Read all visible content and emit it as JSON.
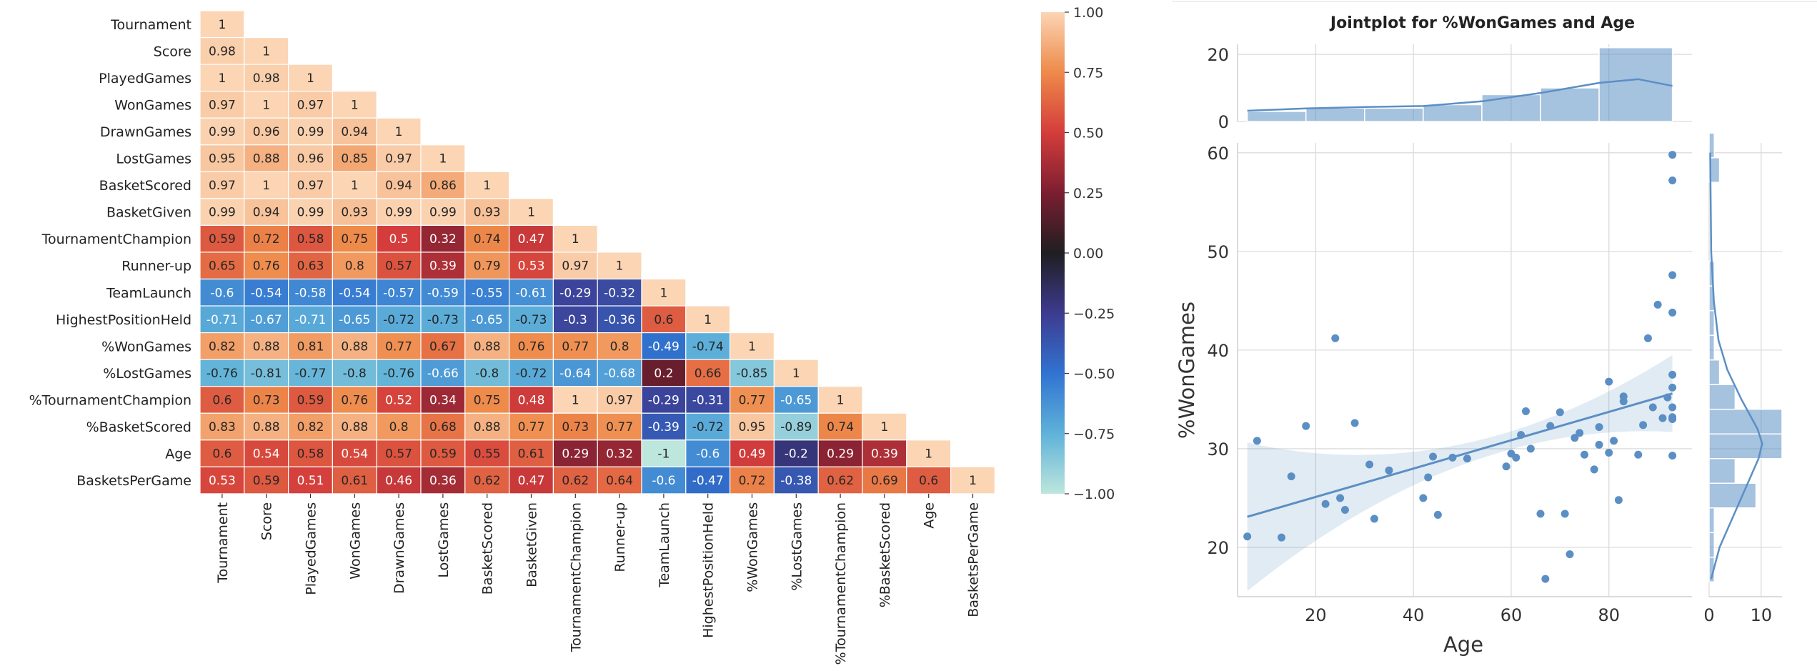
{
  "chart_data": [
    {
      "type": "heatmap",
      "variables": [
        "Tournament",
        "Score",
        "PlayedGames",
        "WonGames",
        "DrawnGames",
        "LostGames",
        "BasketScored",
        "BasketGiven",
        "TournamentChampion",
        "Runner-up",
        "TeamLaunch",
        "HighestPositionHeld",
        "%WonGames",
        "%LostGames",
        "%TournamentChampion",
        "%BasketScored",
        "Age",
        "BasketsPerGame"
      ],
      "lower_triangle": [
        [
          "1"
        ],
        [
          "0.98",
          "1"
        ],
        [
          "1",
          "0.98",
          "1"
        ],
        [
          "0.97",
          "1",
          "0.97",
          "1"
        ],
        [
          "0.99",
          "0.96",
          "0.99",
          "0.94",
          "1"
        ],
        [
          "0.95",
          "0.88",
          "0.96",
          "0.85",
          "0.97",
          "1"
        ],
        [
          "0.97",
          "1",
          "0.97",
          "1",
          "0.94",
          "0.86",
          "1"
        ],
        [
          "0.99",
          "0.94",
          "0.99",
          "0.93",
          "0.99",
          "0.99",
          "0.93",
          "1"
        ],
        [
          "0.59",
          "0.72",
          "0.58",
          "0.75",
          "0.5",
          "0.32",
          "0.74",
          "0.47",
          "1"
        ],
        [
          "0.65",
          "0.76",
          "0.63",
          "0.8",
          "0.57",
          "0.39",
          "0.79",
          "0.53",
          "0.97",
          "1"
        ],
        [
          "-0.6",
          "-0.54",
          "-0.58",
          "-0.54",
          "-0.57",
          "-0.59",
          "-0.55",
          "-0.61",
          "-0.29",
          "-0.32",
          "1"
        ],
        [
          "-0.71",
          "-0.67",
          "-0.71",
          "-0.65",
          "-0.72",
          "-0.73",
          "-0.65",
          "-0.73",
          "-0.3",
          "-0.36",
          "0.6",
          "1"
        ],
        [
          "0.82",
          "0.88",
          "0.81",
          "0.88",
          "0.77",
          "0.67",
          "0.88",
          "0.76",
          "0.77",
          "0.8",
          "-0.49",
          "-0.74",
          "1"
        ],
        [
          "-0.76",
          "-0.81",
          "-0.77",
          "-0.8",
          "-0.76",
          "-0.66",
          "-0.8",
          "-0.72",
          "-0.64",
          "-0.68",
          "0.2",
          "0.66",
          "-0.85",
          "1"
        ],
        [
          "0.6",
          "0.73",
          "0.59",
          "0.76",
          "0.52",
          "0.34",
          "0.75",
          "0.48",
          "1",
          "0.97",
          "-0.29",
          "-0.31",
          "0.77",
          "-0.65",
          "1"
        ],
        [
          "0.83",
          "0.88",
          "0.82",
          "0.88",
          "0.8",
          "0.68",
          "0.88",
          "0.77",
          "0.73",
          "0.77",
          "-0.39",
          "-0.72",
          "0.95",
          "-0.89",
          "0.74",
          "1"
        ],
        [
          "0.6",
          "0.54",
          "0.58",
          "0.54",
          "0.57",
          "0.59",
          "0.55",
          "0.61",
          "0.29",
          "0.32",
          "-1",
          "-0.6",
          "0.49",
          "-0.2",
          "0.29",
          "0.39",
          "1"
        ],
        [
          "0.53",
          "0.59",
          "0.51",
          "0.61",
          "0.46",
          "0.36",
          "0.62",
          "0.47",
          "0.62",
          "0.64",
          "-0.6",
          "-0.47",
          "0.72",
          "-0.38",
          "0.62",
          "0.69",
          "0.6",
          "1"
        ]
      ],
      "colorbar": {
        "min": -1,
        "max": 1,
        "ticks": [
          "1.00",
          "0.75",
          "0.50",
          "0.25",
          "0.00",
          "−0.25",
          "−0.50",
          "−0.75",
          "−1.00"
        ]
      },
      "colormap": "icefire"
    },
    {
      "type": "scatter",
      "title": "Jointplot for %WonGames and Age",
      "xlabel": "Age",
      "ylabel": "%WonGames",
      "xlim": [
        4,
        97
      ],
      "ylim": [
        15,
        61
      ],
      "xticks": [
        20,
        40,
        60,
        80
      ],
      "yticks": [
        20,
        30,
        40,
        50,
        60
      ],
      "color": "#5b8fc4",
      "points": [
        [
          6,
          21.1
        ],
        [
          8,
          30.8
        ],
        [
          13,
          21.0
        ],
        [
          15,
          27.2
        ],
        [
          18,
          32.3
        ],
        [
          22,
          24.4
        ],
        [
          24,
          41.2
        ],
        [
          25,
          25.0
        ],
        [
          26,
          23.8
        ],
        [
          28,
          32.6
        ],
        [
          31,
          28.4
        ],
        [
          32,
          22.9
        ],
        [
          35,
          27.8
        ],
        [
          42,
          25.0
        ],
        [
          43,
          27.1
        ],
        [
          44,
          29.2
        ],
        [
          45,
          23.3
        ],
        [
          48,
          29.1
        ],
        [
          51,
          29.0
        ],
        [
          59,
          28.2
        ],
        [
          60,
          29.5
        ],
        [
          61,
          29.1
        ],
        [
          62,
          31.4
        ],
        [
          63,
          33.8
        ],
        [
          64,
          30.0
        ],
        [
          66,
          23.4
        ],
        [
          67,
          16.8
        ],
        [
          68,
          32.3
        ],
        [
          70,
          33.7
        ],
        [
          71,
          23.4
        ],
        [
          72,
          19.3
        ],
        [
          73,
          31.1
        ],
        [
          74,
          31.6
        ],
        [
          75,
          29.4
        ],
        [
          77,
          27.9
        ],
        [
          78,
          32.2
        ],
        [
          78,
          30.4
        ],
        [
          80,
          36.8
        ],
        [
          80,
          29.6
        ],
        [
          81,
          30.8
        ],
        [
          82,
          24.8
        ],
        [
          83,
          34.8
        ],
        [
          83,
          35.3
        ],
        [
          86,
          29.4
        ],
        [
          87,
          32.4
        ],
        [
          88,
          41.2
        ],
        [
          89,
          34.2
        ],
        [
          90,
          44.6
        ],
        [
          91,
          33.1
        ],
        [
          92,
          35.2
        ],
        [
          93,
          33.0
        ],
        [
          93,
          33.2
        ],
        [
          93,
          34.2
        ],
        [
          93,
          36.2
        ],
        [
          93,
          37.5
        ],
        [
          93,
          43.8
        ],
        [
          93,
          47.6
        ],
        [
          93,
          57.2
        ],
        [
          93,
          59.8
        ],
        [
          93,
          29.3
        ]
      ],
      "regression": {
        "x": [
          6,
          93
        ],
        "y": [
          23.1,
          35.6
        ]
      },
      "marginal_x": {
        "bins": [
          [
            6,
            18,
            3
          ],
          [
            18,
            30,
            4
          ],
          [
            30,
            42,
            4
          ],
          [
            42,
            54,
            5
          ],
          [
            54,
            66,
            8
          ],
          [
            66,
            78,
            10
          ],
          [
            78,
            93,
            22
          ]
        ],
        "yticks": [
          0,
          20
        ],
        "ylim": [
          0,
          23
        ]
      },
      "marginal_y": {
        "bins": [
          [
            16.5,
            19,
            1
          ],
          [
            19,
            21.5,
            1
          ],
          [
            21.5,
            24,
            1
          ],
          [
            24,
            26.5,
            9
          ],
          [
            26.5,
            29,
            5
          ],
          [
            29,
            31.5,
            14
          ],
          [
            31.5,
            34,
            14
          ],
          [
            34,
            36.5,
            5
          ],
          [
            36.5,
            39,
            2
          ],
          [
            39,
            41.5,
            1
          ],
          [
            41.5,
            44,
            1
          ],
          [
            44,
            46.5,
            1
          ],
          [
            46.5,
            49,
            1
          ],
          [
            57,
            59.5,
            2
          ],
          [
            59.5,
            62,
            1
          ]
        ],
        "xticks": [
          0,
          10
        ],
        "xlim": [
          0,
          14
        ]
      }
    }
  ]
}
